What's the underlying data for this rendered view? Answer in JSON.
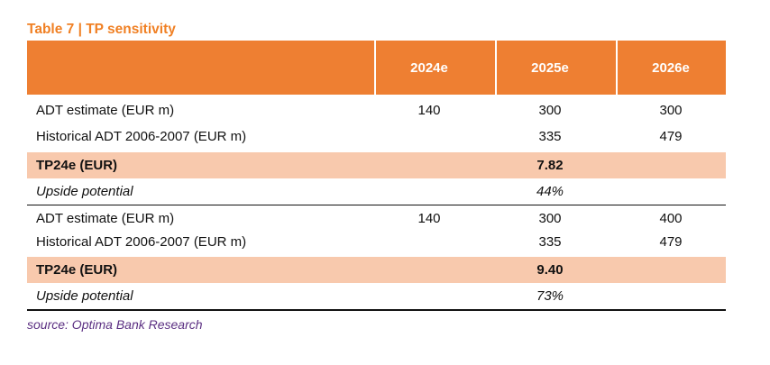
{
  "title": "Table 7 | TP sensitivity",
  "columns": [
    "2024e",
    "2025e",
    "2026e"
  ],
  "blocks": [
    {
      "rows": [
        {
          "label": "ADT estimate (EUR m)",
          "values": [
            "140",
            "300",
            "300"
          ]
        },
        {
          "label": "Historical ADT 2006-2007 (EUR m)",
          "values": [
            "",
            "335",
            "479"
          ]
        }
      ],
      "tp_label": "TP24e (EUR)",
      "tp_value": "7.82",
      "upside_label": "Upside potential",
      "upside_value": "44%"
    },
    {
      "rows": [
        {
          "label": "ADT estimate (EUR m)",
          "values": [
            "140",
            "300",
            "400"
          ]
        },
        {
          "label": "Historical ADT 2006-2007 (EUR m)",
          "values": [
            "",
            "335",
            "479"
          ]
        }
      ],
      "tp_label": "TP24e (EUR)",
      "tp_value": "9.40",
      "upside_label": "Upside potential",
      "upside_value": "73%"
    }
  ],
  "source": "source: Optima Bank Research",
  "colors": {
    "header_bg": "#ee7f32",
    "title": "#f08024",
    "tp_row_bg": "#f8c9ad",
    "source_text": "#5b2f82"
  }
}
